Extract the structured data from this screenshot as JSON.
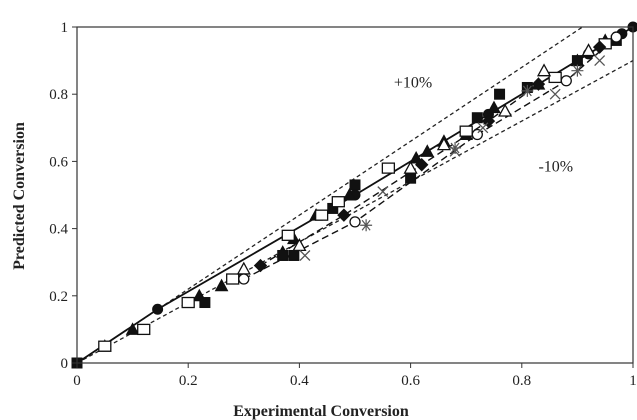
{
  "chart_data": {
    "type": "scatter",
    "title": "",
    "xlabel": "Experimental Conversion",
    "ylabel": "Predicted Conversion",
    "xlim": [
      0,
      1
    ],
    "ylim": [
      0,
      1
    ],
    "xticks": [
      "0",
      "0.2",
      "0.4",
      "0.6",
      "0.8",
      "1"
    ],
    "yticks": [
      "0",
      "0.2",
      "0.4",
      "0.6",
      "0.8",
      "1"
    ],
    "grid": false,
    "legend": "none",
    "annotations": [
      {
        "text": "+10%",
        "x": 0.57,
        "y": 0.82
      },
      {
        "text": "-10%",
        "x": 0.83,
        "y": 0.57
      }
    ],
    "reference_lines": [
      {
        "style": "dashed",
        "slope": 1.1
      },
      {
        "style": "dashed",
        "slope": 0.9
      }
    ],
    "series": [
      {
        "marker": "filled-circle",
        "line": "solid",
        "x": [
          0,
          0.145,
          0.5,
          0.74,
          0.92,
          0.95,
          0.98,
          1.0
        ],
        "y": [
          0,
          0.16,
          0.5,
          0.74,
          0.92,
          0.95,
          0.98,
          1.0
        ]
      },
      {
        "marker": "filled-triangle",
        "line": "none",
        "x": [
          0.05,
          0.1,
          0.22,
          0.26,
          0.37,
          0.39,
          0.43,
          0.49,
          0.61,
          0.63,
          0.66,
          0.7,
          0.75,
          0.83,
          0.9,
          0.95
        ],
        "y": [
          0.05,
          0.1,
          0.2,
          0.23,
          0.33,
          0.37,
          0.44,
          0.5,
          0.61,
          0.63,
          0.66,
          0.68,
          0.76,
          0.83,
          0.9,
          0.96
        ]
      },
      {
        "marker": "filled-square",
        "line": "none",
        "x": [
          0,
          0.23,
          0.37,
          0.39,
          0.46,
          0.5,
          0.6,
          0.72,
          0.76,
          0.81,
          0.9,
          0.97
        ],
        "y": [
          0,
          0.18,
          0.32,
          0.32,
          0.46,
          0.53,
          0.55,
          0.73,
          0.8,
          0.82,
          0.9,
          0.96
        ]
      },
      {
        "marker": "open-square",
        "line": "none",
        "x": [
          0.05,
          0.12,
          0.2,
          0.28,
          0.38,
          0.44,
          0.47,
          0.56,
          0.7,
          0.86,
          0.95
        ],
        "y": [
          0.05,
          0.1,
          0.18,
          0.25,
          0.38,
          0.44,
          0.48,
          0.58,
          0.69,
          0.85,
          0.95
        ]
      },
      {
        "marker": "open-triangle",
        "line": "none",
        "x": [
          0.3,
          0.4,
          0.6,
          0.66,
          0.77,
          0.84,
          0.92
        ],
        "y": [
          0.28,
          0.35,
          0.58,
          0.65,
          0.75,
          0.87,
          0.93
        ]
      },
      {
        "marker": "open-circle",
        "line": "dashed",
        "x": [
          0.3,
          0.5,
          0.72,
          0.88,
          0.97
        ],
        "y": [
          0.25,
          0.42,
          0.68,
          0.84,
          0.97
        ]
      },
      {
        "marker": "filled-diamond",
        "line": "dashed",
        "x": [
          0.33,
          0.48,
          0.62,
          0.74,
          0.83,
          0.94
        ],
        "y": [
          0.29,
          0.44,
          0.59,
          0.72,
          0.83,
          0.94
        ]
      },
      {
        "marker": "cross",
        "line": "none",
        "x": [
          0.41,
          0.55,
          0.68,
          0.73,
          0.86,
          0.94
        ],
        "y": [
          0.32,
          0.51,
          0.63,
          0.7,
          0.8,
          0.9
        ]
      },
      {
        "marker": "asterisk",
        "line": "none",
        "x": [
          0.52,
          0.68,
          0.81,
          0.9
        ],
        "y": [
          0.41,
          0.64,
          0.81,
          0.87
        ]
      }
    ]
  }
}
